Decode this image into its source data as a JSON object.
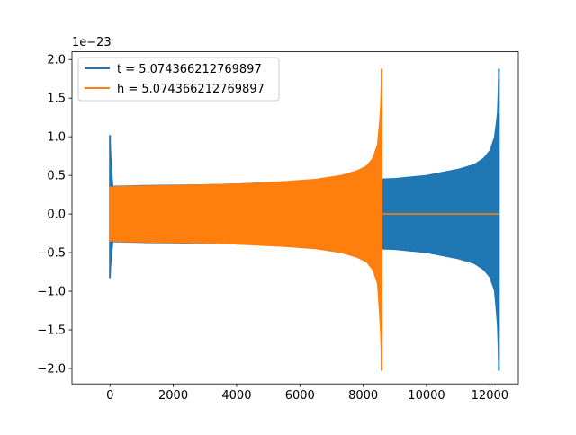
{
  "chart_data": {
    "type": "line",
    "title": "",
    "xlabel": "",
    "ylabel": "",
    "y_offset_label": "1e−23",
    "xlim": [
      -1200,
      12900
    ],
    "ylim": [
      -2.2,
      2.1
    ],
    "x_ticks": [
      0,
      2000,
      4000,
      6000,
      8000,
      10000,
      12000
    ],
    "x_tick_labels": [
      "0",
      "2000",
      "4000",
      "6000",
      "8000",
      "10000",
      "12000"
    ],
    "y_ticks": [
      -2.0,
      -1.5,
      -1.0,
      -0.5,
      0.0,
      0.5,
      1.0,
      1.5,
      2.0
    ],
    "y_tick_labels": [
      "−2.0",
      "−1.5",
      "−1.0",
      "−0.5",
      "0.0",
      "0.5",
      "1.0",
      "1.5",
      "2.0"
    ],
    "grid": false,
    "legend_position": "upper-left",
    "series": [
      {
        "name": "t = 5.074366212769897",
        "color": "#1f77b4",
        "envelope": {
          "x": [
            0,
            80,
            1000,
            3000,
            5000,
            7000,
            9000,
            10000,
            11000,
            11500,
            11800,
            12000,
            12150,
            12250,
            12285
          ],
          "upper": [
            1.02,
            0.36,
            0.37,
            0.38,
            0.4,
            0.43,
            0.46,
            0.5,
            0.58,
            0.64,
            0.72,
            0.82,
            1.0,
            1.35,
            1.88
          ],
          "lower": [
            -0.83,
            -0.36,
            -0.37,
            -0.38,
            -0.4,
            -0.43,
            -0.46,
            -0.5,
            -0.58,
            -0.64,
            -0.72,
            -0.82,
            -1.0,
            -1.5,
            -2.03
          ]
        }
      },
      {
        "name": "h = 5.074366212769897",
        "color": "#ff7f0e",
        "envelope": {
          "x": [
            0,
            500,
            2000,
            4000,
            5500,
            6500,
            7300,
            7800,
            8100,
            8300,
            8450,
            8540,
            8580
          ],
          "upper": [
            0.35,
            0.36,
            0.37,
            0.39,
            0.42,
            0.45,
            0.5,
            0.56,
            0.62,
            0.72,
            0.9,
            1.3,
            1.88
          ],
          "lower": [
            -0.35,
            -0.36,
            -0.37,
            -0.39,
            -0.42,
            -0.45,
            -0.5,
            -0.56,
            -0.62,
            -0.72,
            -0.9,
            -1.45,
            -2.03
          ]
        },
        "zero_after_x": [
          8580,
          12285
        ]
      }
    ]
  }
}
